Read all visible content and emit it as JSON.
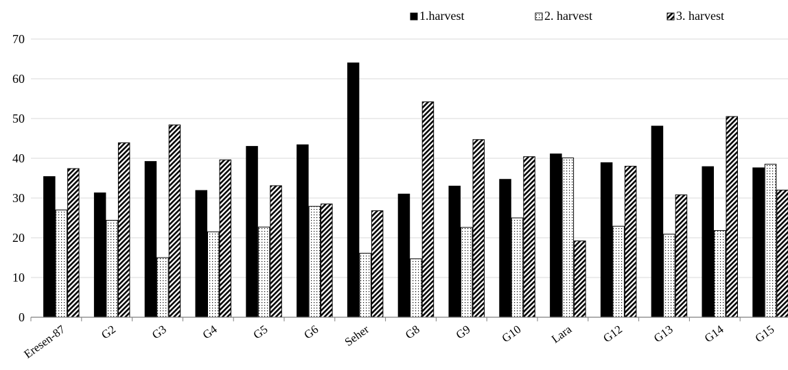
{
  "chart_data": {
    "type": "bar",
    "categories": [
      "Eresen-87",
      "G2",
      "G3",
      "G4",
      "G5",
      "G6",
      "Seher",
      "G8",
      "G9",
      "G10",
      "Lara",
      "G12",
      "G13",
      "G14",
      "G15"
    ],
    "series": [
      {
        "name": "1.harvest",
        "pattern": "solid",
        "values": [
          35.4,
          31.3,
          39.2,
          31.9,
          43.0,
          43.4,
          64.0,
          31.0,
          33.0,
          34.7,
          41.1,
          38.9,
          48.1,
          37.9,
          37.6
        ]
      },
      {
        "name": "2. harvest",
        "pattern": "dots",
        "values": [
          27.0,
          24.4,
          15.0,
          21.5,
          22.7,
          27.9,
          16.1,
          14.7,
          22.6,
          25.0,
          40.1,
          22.9,
          20.9,
          21.8,
          38.5
        ]
      },
      {
        "name": "3. harvest",
        "pattern": "diagonal",
        "values": [
          37.4,
          43.9,
          48.4,
          39.6,
          33.1,
          28.5,
          26.8,
          54.2,
          44.7,
          40.4,
          19.2,
          38.0,
          30.8,
          50.5,
          32.0
        ]
      }
    ],
    "yticks": [
      "0",
      "10",
      "20",
      "30",
      "40",
      "50",
      "60",
      "70"
    ],
    "ylim": [
      0,
      70
    ],
    "grid": true,
    "legend_position": "top-right",
    "colors": {
      "bar_stroke": "#000000",
      "grid": "#d9d9d9",
      "axis": "#7f7f7f"
    }
  }
}
